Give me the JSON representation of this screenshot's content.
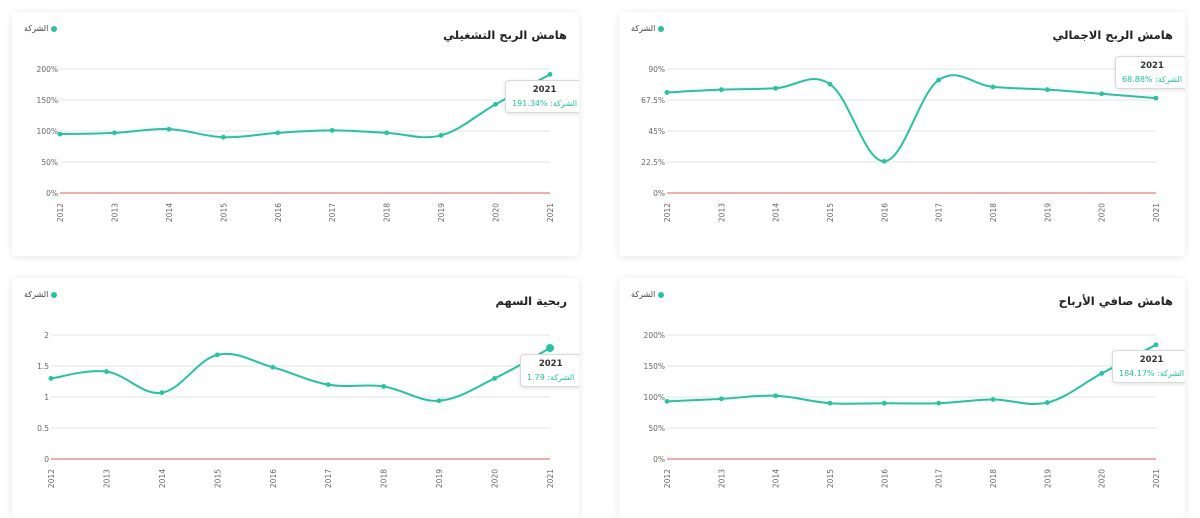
{
  "colors": {
    "accent": "#21c5a3",
    "baseline": "#e05b5b",
    "grid": "#e3e3e3"
  },
  "legend_label": "الشركة",
  "chart_data": [
    {
      "type": "line",
      "title": "هامش الربح الاجمالي",
      "categories": [
        "2012",
        "2013",
        "2014",
        "2015",
        "2016",
        "2017",
        "2018",
        "2019",
        "2020",
        "2021"
      ],
      "series": [
        {
          "name": "الشركة",
          "values": [
            73,
            75,
            76,
            79,
            23,
            82,
            77,
            75,
            72,
            68.88
          ]
        }
      ],
      "ylim": [
        0,
        90
      ],
      "yticks": [
        0,
        22.5,
        45,
        67.5,
        90
      ],
      "ytick_labels": [
        "0%",
        "22.5%",
        "45%",
        "67.5%",
        "90%"
      ],
      "tooltip": {
        "year": "2021",
        "label": "الشركة:",
        "value": "68.88%"
      }
    },
    {
      "type": "line",
      "title": "هامش الربح التشغيلي",
      "categories": [
        "2012",
        "2013",
        "2014",
        "2015",
        "2016",
        "2017",
        "2018",
        "2019",
        "2020",
        "2021"
      ],
      "series": [
        {
          "name": "الشركة",
          "values": [
            95,
            97,
            103,
            90,
            97,
            101,
            97,
            93,
            143,
            191.34
          ]
        }
      ],
      "ylim": [
        0,
        200
      ],
      "yticks": [
        0,
        50,
        100,
        150,
        200
      ],
      "ytick_labels": [
        "0%",
        "50%",
        "100%",
        "150%",
        "200%"
      ],
      "tooltip": {
        "year": "2021",
        "label": "الشركة:",
        "value": "191.34%"
      }
    },
    {
      "type": "line",
      "title": "هامش صافي الأرباح",
      "categories": [
        "2012",
        "2013",
        "2014",
        "2015",
        "2016",
        "2017",
        "2018",
        "2019",
        "2020",
        "2021"
      ],
      "series": [
        {
          "name": "الشركة",
          "values": [
            93,
            97,
            102,
            90,
            90,
            90,
            96,
            91,
            138,
            184.17
          ]
        }
      ],
      "ylim": [
        0,
        200
      ],
      "yticks": [
        0,
        50,
        100,
        150,
        200
      ],
      "ytick_labels": [
        "0%",
        "50%",
        "100%",
        "150%",
        "200%"
      ],
      "tooltip": {
        "year": "2021",
        "label": "الشركة:",
        "value": "184.17%"
      }
    },
    {
      "type": "line",
      "title": "ربحية السهم",
      "categories": [
        "2012",
        "2013",
        "2014",
        "2015",
        "2016",
        "2017",
        "2018",
        "2019",
        "2020",
        "2021"
      ],
      "series": [
        {
          "name": "الشركة",
          "values": [
            1.3,
            1.41,
            1.07,
            1.68,
            1.48,
            1.2,
            1.17,
            0.94,
            1.3,
            1.79
          ]
        }
      ],
      "ylim": [
        0,
        2
      ],
      "yticks": [
        0,
        0.5,
        1,
        1.5,
        2
      ],
      "ytick_labels": [
        "0",
        "0.5",
        "1",
        "1.5",
        "2"
      ],
      "tooltip": {
        "year": "2021",
        "label": "الشركة:",
        "value": "1.79"
      }
    }
  ]
}
